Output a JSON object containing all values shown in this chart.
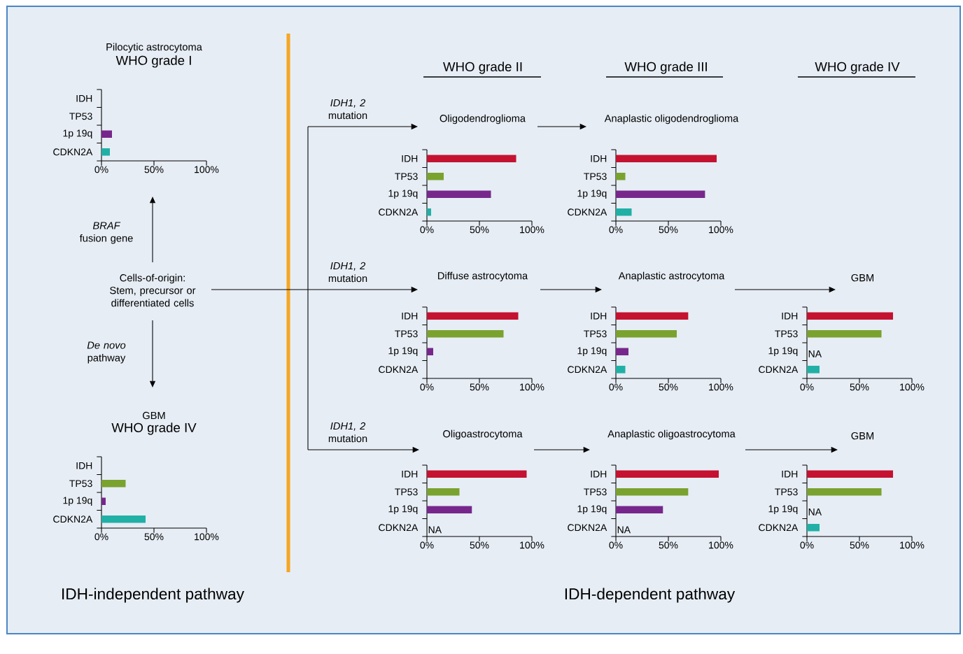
{
  "chart_data": [
    {
      "type": "bar",
      "orientation": "horizontal",
      "subtitle": "Pilocytic astrocytoma",
      "title": "WHO grade I",
      "categories": [
        "IDH",
        "TP53",
        "1p 19q",
        "CDKN2A"
      ],
      "values": [
        0,
        0,
        10,
        8
      ],
      "colors": [
        "#c41230",
        "#7aa22f",
        "#77278b",
        "#21b0a5"
      ],
      "xlim": [
        0,
        100
      ],
      "xticks": [
        {
          "value": 0,
          "label": "0%"
        },
        {
          "value": 50,
          "label": "50%"
        },
        {
          "value": 100,
          "label": "100%"
        }
      ]
    },
    {
      "type": "bar",
      "orientation": "horizontal",
      "subtitle": "GBM",
      "title": "WHO grade IV",
      "categories": [
        "IDH",
        "TP53",
        "1p 19q",
        "CDKN2A"
      ],
      "values": [
        0,
        23,
        4,
        42
      ],
      "colors": [
        "#c41230",
        "#7aa22f",
        "#77278b",
        "#21b0a5"
      ],
      "xlim": [
        0,
        100
      ],
      "xticks": [
        {
          "value": 0,
          "label": "0%"
        },
        {
          "value": 50,
          "label": "50%"
        },
        {
          "value": 100,
          "label": "100%"
        }
      ]
    },
    {
      "type": "bar",
      "orientation": "horizontal",
      "title": "Oligodendroglioma",
      "categories": [
        "IDH",
        "TP53",
        "1p 19q",
        "CDKN2A"
      ],
      "values": [
        85,
        16,
        61,
        4
      ],
      "colors": [
        "#c41230",
        "#7aa22f",
        "#77278b",
        "#21b0a5"
      ],
      "xlim": [
        0,
        100
      ],
      "xticks": [
        {
          "value": 0,
          "label": "0%"
        },
        {
          "value": 50,
          "label": "50%"
        },
        {
          "value": 100,
          "label": "100%"
        }
      ]
    },
    {
      "type": "bar",
      "orientation": "horizontal",
      "title": "Anaplastic oligodendroglioma",
      "categories": [
        "IDH",
        "TP53",
        "1p 19q",
        "CDKN2A"
      ],
      "values": [
        96,
        9,
        85,
        15
      ],
      "colors": [
        "#c41230",
        "#7aa22f",
        "#77278b",
        "#21b0a5"
      ],
      "xlim": [
        0,
        100
      ],
      "xticks": [
        {
          "value": 0,
          "label": "0%"
        },
        {
          "value": 50,
          "label": "50%"
        },
        {
          "value": 100,
          "label": "100%"
        }
      ]
    },
    {
      "type": "bar",
      "orientation": "horizontal",
      "title": "Diffuse astrocytoma",
      "categories": [
        "IDH",
        "TP53",
        "1p 19q",
        "CDKN2A"
      ],
      "values": [
        87,
        73,
        6,
        0
      ],
      "colors": [
        "#c41230",
        "#7aa22f",
        "#77278b",
        "#21b0a5"
      ],
      "xlim": [
        0,
        100
      ],
      "xticks": [
        {
          "value": 0,
          "label": "0%"
        },
        {
          "value": 50,
          "label": "50%"
        },
        {
          "value": 100,
          "label": "100%"
        }
      ]
    },
    {
      "type": "bar",
      "orientation": "horizontal",
      "title": "Anaplastic astrocytoma",
      "categories": [
        "IDH",
        "TP53",
        "1p 19q",
        "CDKN2A"
      ],
      "values": [
        69,
        58,
        12,
        9
      ],
      "colors": [
        "#c41230",
        "#7aa22f",
        "#77278b",
        "#21b0a5"
      ],
      "xlim": [
        0,
        100
      ],
      "xticks": [
        {
          "value": 0,
          "label": "0%"
        },
        {
          "value": 50,
          "label": "50%"
        },
        {
          "value": 100,
          "label": "100%"
        }
      ]
    },
    {
      "type": "bar",
      "orientation": "horizontal",
      "title": "GBM",
      "categories": [
        "IDH",
        "TP53",
        "1p 19q",
        "CDKN2A"
      ],
      "values": [
        82,
        71,
        null,
        12
      ],
      "value_labels": [
        null,
        null,
        "NA",
        null
      ],
      "colors": [
        "#c41230",
        "#7aa22f",
        "#77278b",
        "#21b0a5"
      ],
      "xlim": [
        0,
        100
      ],
      "xticks": [
        {
          "value": 0,
          "label": "0%"
        },
        {
          "value": 50,
          "label": "50%"
        },
        {
          "value": 100,
          "label": "100%"
        }
      ]
    },
    {
      "type": "bar",
      "orientation": "horizontal",
      "title": "Oligoastrocytoma",
      "categories": [
        "IDH",
        "TP53",
        "1p 19q",
        "CDKN2A"
      ],
      "values": [
        95,
        31,
        43,
        null
      ],
      "value_labels": [
        null,
        null,
        null,
        "NA"
      ],
      "colors": [
        "#c41230",
        "#7aa22f",
        "#77278b",
        "#21b0a5"
      ],
      "xlim": [
        0,
        100
      ],
      "xticks": [
        {
          "value": 0,
          "label": "0%"
        },
        {
          "value": 50,
          "label": "50%"
        },
        {
          "value": 100,
          "label": "100%"
        }
      ]
    },
    {
      "type": "bar",
      "orientation": "horizontal",
      "title": "Anaplastic oligoastrocytoma",
      "categories": [
        "IDH",
        "TP53",
        "1p 19q",
        "CDKN2A"
      ],
      "values": [
        98,
        69,
        45,
        null
      ],
      "value_labels": [
        null,
        null,
        null,
        "NA"
      ],
      "colors": [
        "#c41230",
        "#7aa22f",
        "#77278b",
        "#21b0a5"
      ],
      "xlim": [
        0,
        100
      ],
      "xticks": [
        {
          "value": 0,
          "label": "0%"
        },
        {
          "value": 50,
          "label": "50%"
        },
        {
          "value": 100,
          "label": "100%"
        }
      ]
    },
    {
      "type": "bar",
      "orientation": "horizontal",
      "title": "GBM",
      "categories": [
        "IDH",
        "TP53",
        "1p 19q",
        "CDKN2A"
      ],
      "values": [
        82,
        71,
        null,
        12
      ],
      "value_labels": [
        null,
        null,
        "NA",
        null
      ],
      "colors": [
        "#c41230",
        "#7aa22f",
        "#77278b",
        "#21b0a5"
      ],
      "xlim": [
        0,
        100
      ],
      "xticks": [
        {
          "value": 0,
          "label": "0%"
        },
        {
          "value": 50,
          "label": "50%"
        },
        {
          "value": 100,
          "label": "100%"
        }
      ]
    },
    {
      "type": "other",
      "annotations": [
        "WHO grade II",
        "WHO grade III",
        "WHO grade IV",
        "*IDH1, 2* mutation",
        "*IDH1, 2* mutation",
        "*IDH1, 2* mutation",
        "*BRAF* fusion gene",
        "Cells-of-origin: Stem, precursor or differentiated cells",
        "*De novo* pathway",
        "IDH-independent pathway",
        "IDH-dependent pathway"
      ]
    }
  ]
}
